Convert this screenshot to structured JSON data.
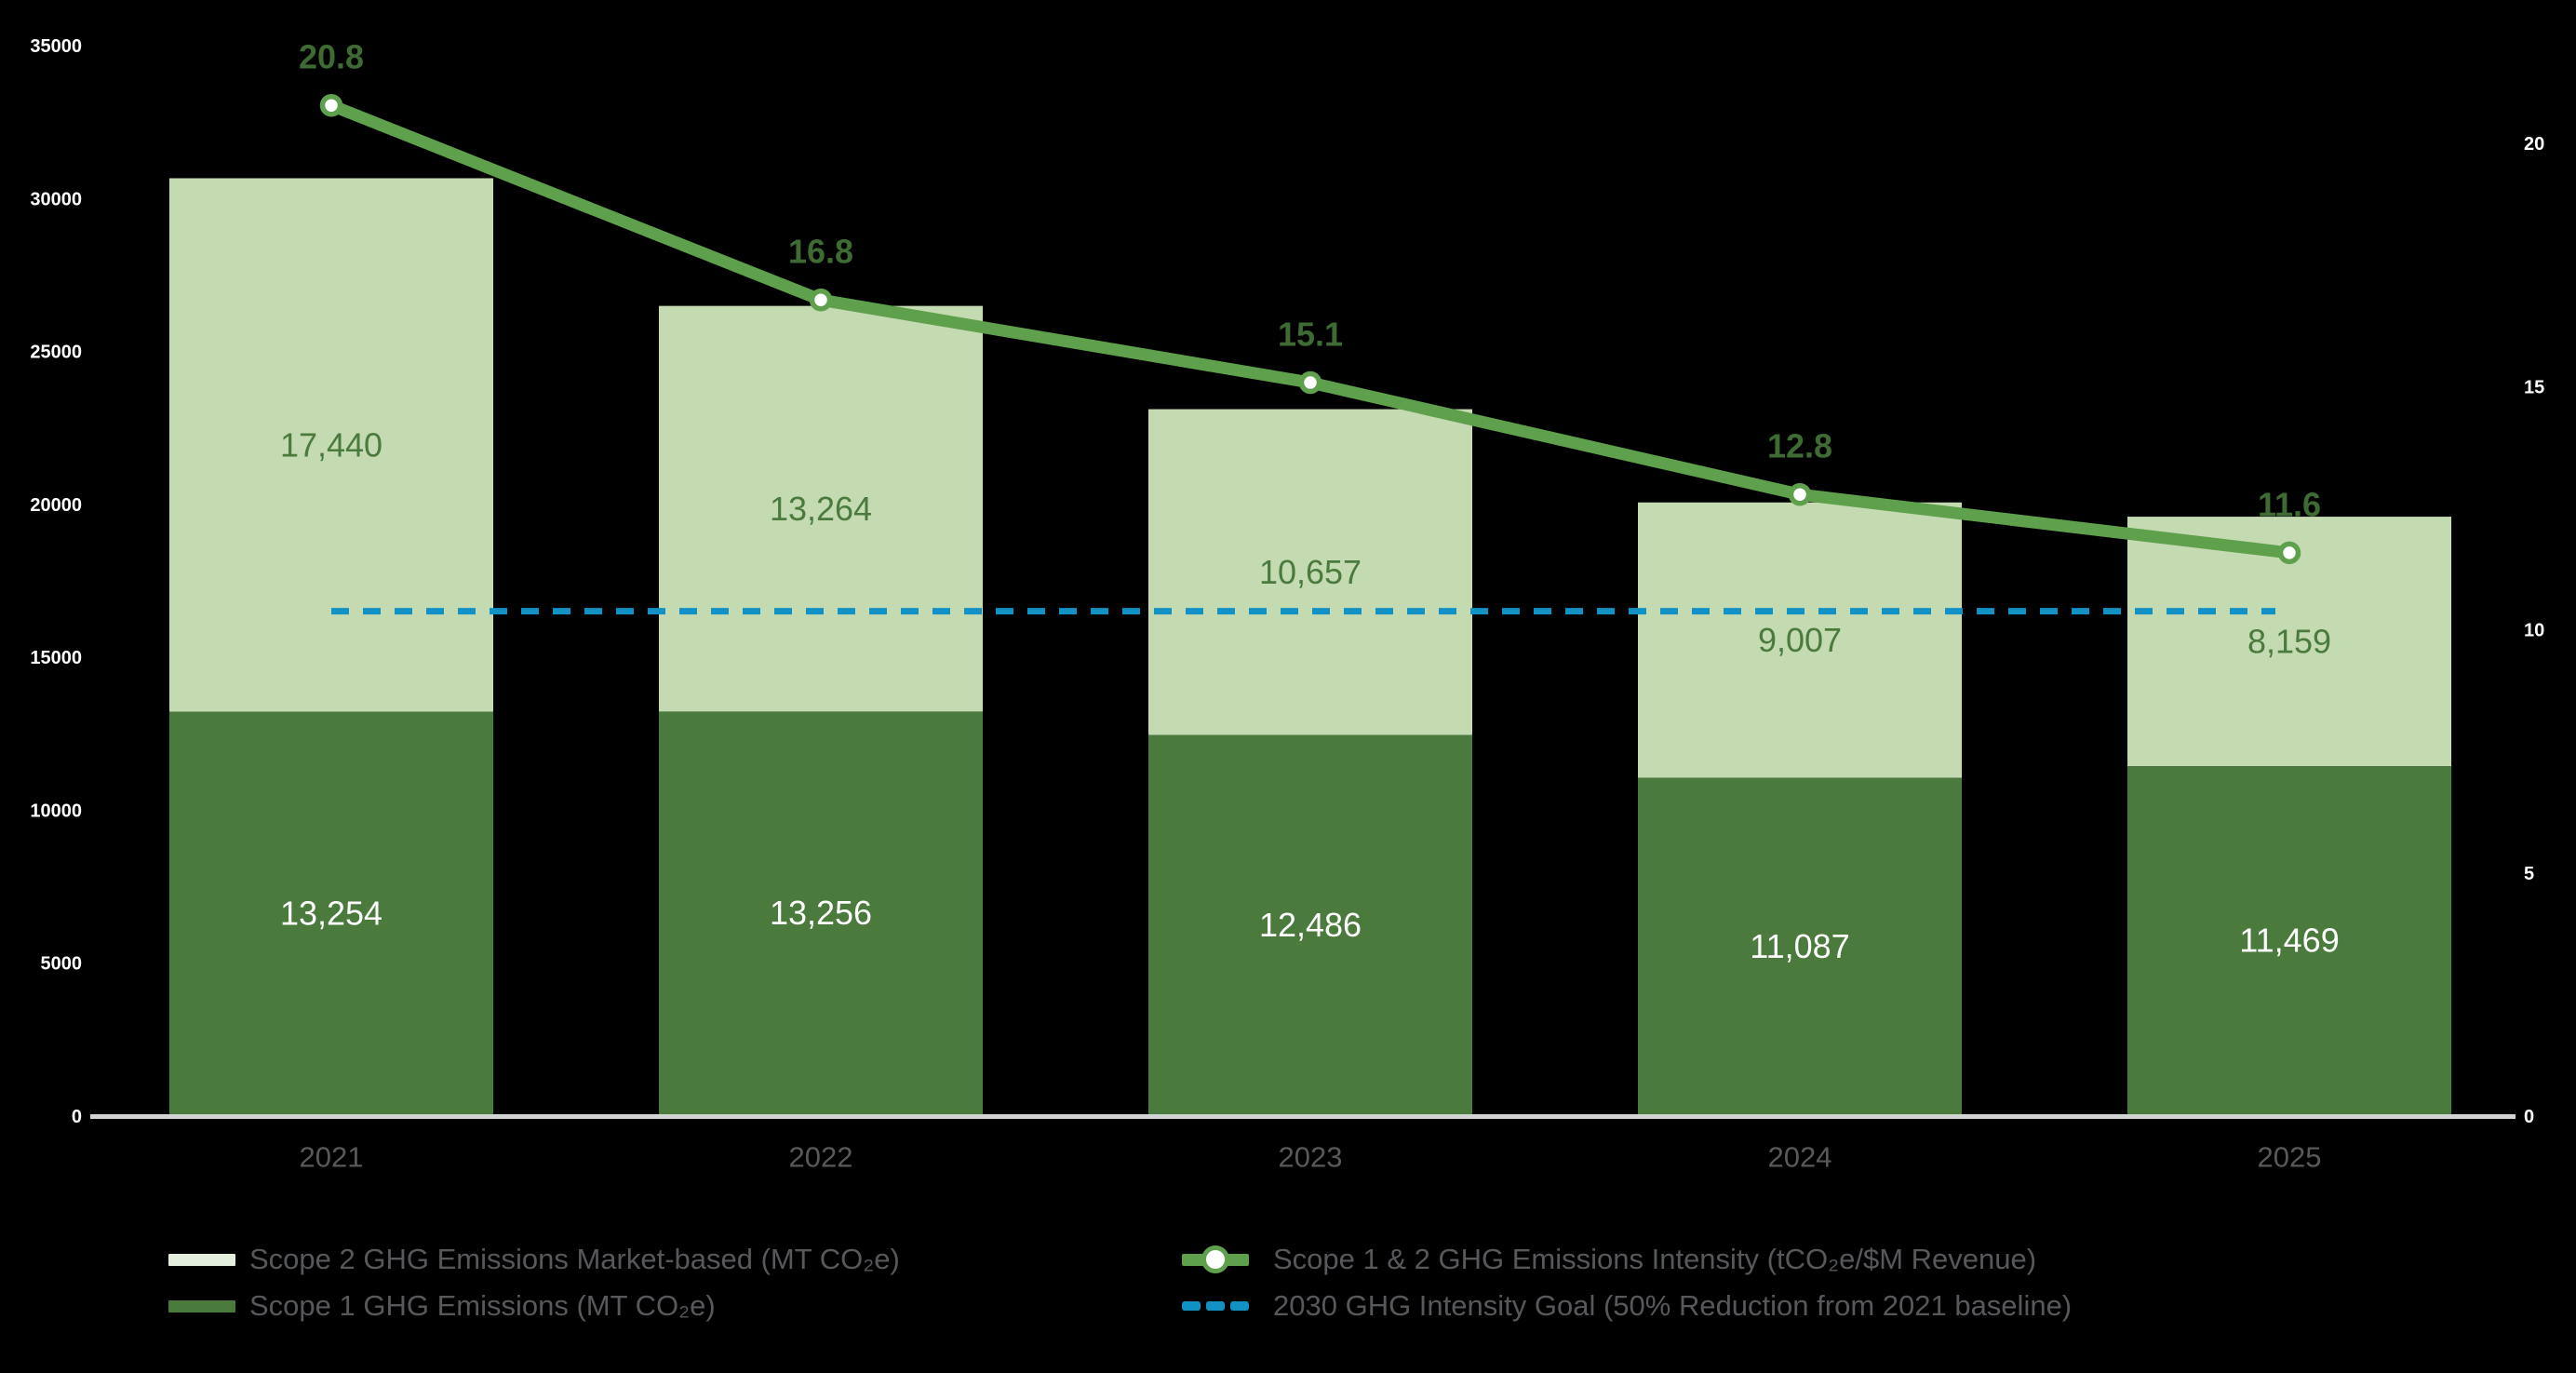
{
  "chart_data": {
    "type": "combo-stacked-bar-line",
    "background": "#000000",
    "categories": [
      "2021",
      "2022",
      "2023",
      "2024",
      "2025"
    ],
    "series": [
      {
        "name": "Scope 1 GHG Emissions (MT CO₂e)",
        "type": "bar",
        "stack": "bottom",
        "axis": "left",
        "color": "#4A7B3C",
        "label_color": "#FFFFFF",
        "values": [
          13254,
          13256,
          12486,
          11087,
          11469
        ],
        "labels": [
          "13,254",
          "13,256",
          "12,486",
          "11,087",
          "11,469"
        ]
      },
      {
        "name": "Scope 2 GHG Emissions Market-based (MT CO₂e)",
        "type": "bar",
        "stack": "top",
        "axis": "left",
        "color": "#C4DAB1",
        "label_color": "#4A7B3C",
        "values": [
          17440,
          13264,
          10657,
          9007,
          8159
        ],
        "labels": [
          "17,440",
          "13,264",
          "10,657",
          "9,007",
          "8,159"
        ]
      },
      {
        "name": "Scope 1 & 2 GHG Emissions Intensity (tCO₂e/$M Revenue)",
        "type": "line",
        "axis": "right",
        "color": "#5FA04C",
        "marker": "white-circle-green-ring",
        "label_color": "#3E6B33",
        "values": [
          20.8,
          16.8,
          15.1,
          12.8,
          11.6
        ],
        "labels": [
          "20.8",
          "16.8",
          "15.1",
          "12.8",
          "11.6"
        ]
      },
      {
        "name": "2030 GHG Intensity Goal (50% Reduction from 2021 baseline)",
        "type": "dashed-line",
        "axis": "right",
        "color": "#1291C5",
        "value": 10.4
      }
    ],
    "left_axis": {
      "min": 0,
      "max": 35000,
      "ticks": [
        "35000",
        "30000",
        "25000",
        "20000",
        "15000",
        "10000",
        "5000",
        "0"
      ],
      "tick_color": "#FFFFFF"
    },
    "right_axis": {
      "min": 0,
      "max": 20,
      "ticks": [
        "20",
        "15",
        "10",
        "5",
        "0"
      ],
      "tick_color": "#FFFFFF"
    },
    "x_axis": {
      "labels": [
        "2021",
        "2022",
        "2023",
        "2024",
        "2025"
      ],
      "label_color": "#58595B",
      "axis_line_color": "#D2D4D4"
    },
    "grid": "off",
    "legend_position": "bottom"
  },
  "legend": {
    "items": [
      {
        "label": "Scope 2 GHG Emissions Market-based (MT CO₂e)",
        "swatch_color": "#E4EEDC",
        "type": "bar"
      },
      {
        "label": "Scope 1 GHG Emissions (MT CO₂e)",
        "swatch_color": "#4A7B3C",
        "type": "bar"
      },
      {
        "label": "Scope 1 & 2 GHG Emissions Intensity (tCO₂e/$M Revenue)",
        "swatch_color": "#5FA04C",
        "type": "line-marker"
      },
      {
        "label": "2030 GHG Intensity Goal (50% Reduction from 2021 baseline)",
        "swatch_color": "#1291C5",
        "type": "dashed"
      }
    ],
    "text_color": "#56585B"
  }
}
